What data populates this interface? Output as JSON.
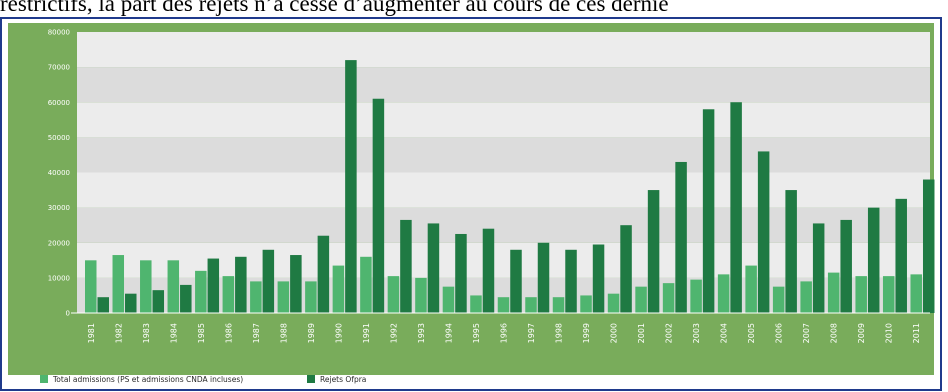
{
  "header": {
    "text": "restrictifs, la part des rejets n’a cessé d’augmenter au cours de ces derniè"
  },
  "colors": {
    "admissions": "#4fb56f",
    "rejets": "#1f7a43",
    "panel": "#79ac5b",
    "band_light": "#ececec",
    "band_dark": "#dcdcdc"
  },
  "chart_data": {
    "type": "bar",
    "categories": [
      "1981",
      "1982",
      "1983",
      "1984",
      "1985",
      "1986",
      "1987",
      "1988",
      "1989",
      "1990",
      "1991",
      "1992",
      "1993",
      "1994",
      "1995",
      "1996",
      "1997",
      "1998",
      "1999",
      "2000",
      "2001",
      "2002",
      "2003",
      "2004",
      "2005",
      "2006",
      "2007",
      "2008",
      "2009",
      "2010",
      "2011"
    ],
    "series": [
      {
        "name": "Total admissions (PS et admissions CNDA incluses)",
        "color": "#4fb56f",
        "values": [
          15000,
          16500,
          15000,
          15000,
          12000,
          10500,
          9000,
          9000,
          9000,
          13500,
          16000,
          10500,
          10000,
          7500,
          5000,
          4500,
          4500,
          4500,
          5000,
          5500,
          7500,
          8500,
          9500,
          11000,
          13500,
          7500,
          9000,
          11500,
          10500,
          10500,
          11000
        ]
      },
      {
        "name": "Rejets Ofpra",
        "color": "#1f7a43",
        "values": [
          4500,
          5500,
          6500,
          8000,
          15500,
          16000,
          18000,
          16500,
          22000,
          72000,
          61000,
          26500,
          25500,
          22500,
          24000,
          18000,
          20000,
          18000,
          19500,
          25000,
          35000,
          43000,
          58000,
          60000,
          46000,
          35000,
          25500,
          26500,
          30000,
          32500,
          38000
        ]
      }
    ],
    "yticks": [
      "0",
      "10000",
      "20000",
      "30000",
      "40000",
      "50000",
      "60000",
      "70000",
      "80000"
    ],
    "ylim": [
      0,
      80000
    ],
    "grid": "alternating bands",
    "legend_position": "bottom-left"
  }
}
